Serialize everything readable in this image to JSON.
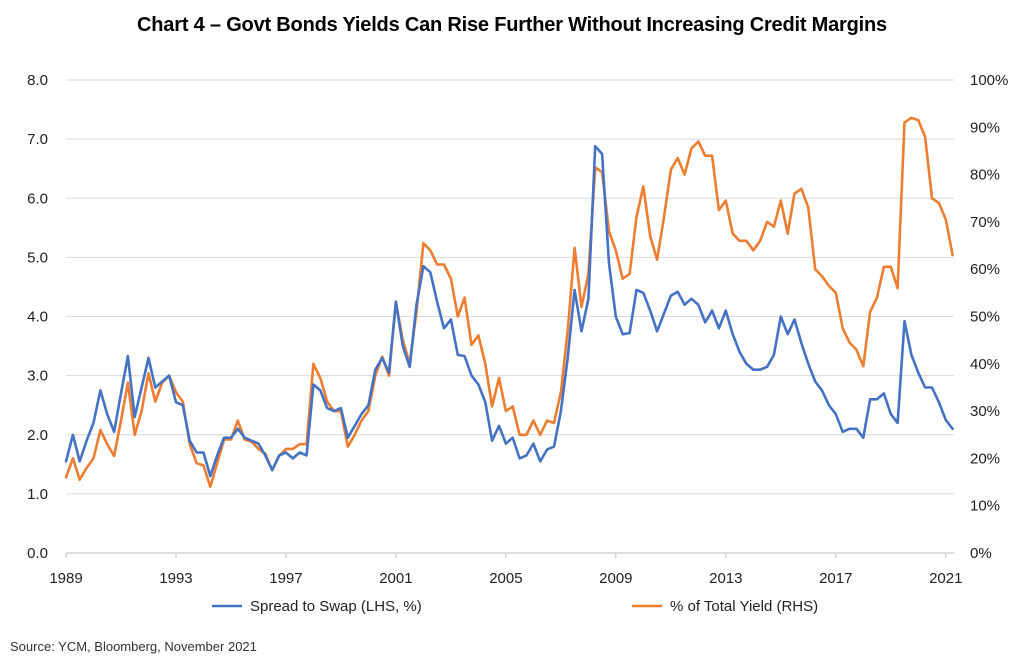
{
  "colors": {
    "spread": "#4472c4",
    "pct": "#ed7d31",
    "grid": "#d9d9d9"
  },
  "source": "Source: YCM, Bloomberg, November 2021",
  "chart_data": {
    "type": "line",
    "title": "Chart 4 – Govt Bonds Yields Can Rise Further Without Increasing Credit Margins",
    "xlabel": "",
    "ylabel": "",
    "x_ticks": [
      "1989",
      "1993",
      "1997",
      "2001",
      "2005",
      "2009",
      "2013",
      "2017",
      "2021"
    ],
    "xlim": [
      1989,
      2021.3
    ],
    "ylim_left": [
      0,
      8
    ],
    "y_ticks_left": [
      "0.0",
      "1.0",
      "2.0",
      "3.0",
      "4.0",
      "5.0",
      "6.0",
      "7.0",
      "8.0"
    ],
    "ylim_right": [
      0,
      100
    ],
    "y_ticks_right": [
      "0%",
      "10%",
      "20%",
      "30%",
      "40%",
      "50%",
      "60%",
      "70%",
      "80%",
      "90%",
      "100%"
    ],
    "grid": "horizontal",
    "legend_position": "bottom",
    "series": [
      {
        "name": "Spread to Swap (LHS, %)",
        "axis": "left",
        "x": [
          1989.0,
          1989.25,
          1989.5,
          1989.75,
          1990.0,
          1990.25,
          1990.5,
          1990.75,
          1991.0,
          1991.25,
          1991.5,
          1991.75,
          1992.0,
          1992.25,
          1992.5,
          1992.75,
          1993.0,
          1993.25,
          1993.5,
          1993.75,
          1994.0,
          1994.25,
          1994.5,
          1994.75,
          1995.0,
          1995.25,
          1995.5,
          1995.75,
          1996.0,
          1996.25,
          1996.5,
          1996.75,
          1997.0,
          1997.25,
          1997.5,
          1997.75,
          1998.0,
          1998.25,
          1998.5,
          1998.75,
          1999.0,
          1999.25,
          1999.5,
          1999.75,
          2000.0,
          2000.25,
          2000.5,
          2000.75,
          2001.0,
          2001.25,
          2001.5,
          2001.75,
          2002.0,
          2002.25,
          2002.5,
          2002.75,
          2003.0,
          2003.25,
          2003.5,
          2003.75,
          2004.0,
          2004.25,
          2004.5,
          2004.75,
          2005.0,
          2005.25,
          2005.5,
          2005.75,
          2006.0,
          2006.25,
          2006.5,
          2006.75,
          2007.0,
          2007.25,
          2007.5,
          2007.75,
          2008.0,
          2008.25,
          2008.5,
          2008.75,
          2009.0,
          2009.25,
          2009.5,
          2009.75,
          2010.0,
          2010.25,
          2010.5,
          2010.75,
          2011.0,
          2011.25,
          2011.5,
          2011.75,
          2012.0,
          2012.25,
          2012.5,
          2012.75,
          2013.0,
          2013.25,
          2013.5,
          2013.75,
          2014.0,
          2014.25,
          2014.5,
          2014.75,
          2015.0,
          2015.25,
          2015.5,
          2015.75,
          2016.0,
          2016.25,
          2016.5,
          2016.75,
          2017.0,
          2017.25,
          2017.5,
          2017.75,
          2018.0,
          2018.25,
          2018.5,
          2018.75,
          2019.0,
          2019.25,
          2019.5,
          2019.75,
          2020.0,
          2020.25,
          2020.5,
          2020.75,
          2021.0,
          2021.25
        ],
        "values": [
          1.55,
          2.0,
          1.55,
          1.9,
          2.2,
          2.75,
          2.35,
          2.05,
          2.7,
          3.33,
          2.3,
          2.8,
          3.3,
          2.8,
          2.9,
          3.0,
          2.55,
          2.5,
          1.9,
          1.7,
          1.7,
          1.3,
          1.65,
          1.95,
          1.95,
          2.1,
          1.95,
          1.9,
          1.85,
          1.65,
          1.4,
          1.65,
          1.7,
          1.6,
          1.7,
          1.65,
          2.85,
          2.75,
          2.45,
          2.4,
          2.45,
          1.95,
          2.15,
          2.35,
          2.5,
          3.1,
          3.3,
          3.05,
          4.25,
          3.5,
          3.15,
          4.2,
          4.85,
          4.75,
          4.25,
          3.8,
          3.95,
          3.35,
          3.33,
          3.0,
          2.85,
          2.55,
          1.9,
          2.15,
          1.85,
          1.95,
          1.6,
          1.65,
          1.85,
          1.55,
          1.75,
          1.8,
          2.4,
          3.3,
          4.45,
          3.75,
          4.3,
          6.88,
          6.75,
          4.9,
          4.0,
          3.7,
          3.72,
          4.45,
          4.4,
          4.1,
          3.75,
          4.05,
          4.35,
          4.42,
          4.2,
          4.3,
          4.2,
          3.9,
          4.1,
          3.8,
          4.1,
          3.7,
          3.4,
          3.2,
          3.1,
          3.1,
          3.15,
          3.35,
          4.0,
          3.7,
          3.95,
          3.55,
          3.2,
          2.9,
          2.75,
          2.5,
          2.35,
          2.05,
          2.1,
          2.1,
          1.95,
          2.6,
          2.6,
          2.7,
          2.35,
          2.2,
          3.92,
          3.35,
          3.05,
          2.8,
          2.8,
          2.55,
          2.25,
          2.1
        ]
      },
      {
        "name": "% of Total Yield (RHS)",
        "axis": "right",
        "x": [
          1989.0,
          1989.25,
          1989.5,
          1989.75,
          1990.0,
          1990.25,
          1990.5,
          1990.75,
          1991.0,
          1991.25,
          1991.5,
          1991.75,
          1992.0,
          1992.25,
          1992.5,
          1992.75,
          1993.0,
          1993.25,
          1993.5,
          1993.75,
          1994.0,
          1994.25,
          1994.5,
          1994.75,
          1995.0,
          1995.25,
          1995.5,
          1995.75,
          1996.0,
          1996.25,
          1996.5,
          1996.75,
          1997.0,
          1997.25,
          1997.5,
          1997.75,
          1998.0,
          1998.25,
          1998.5,
          1998.75,
          1999.0,
          1999.25,
          1999.5,
          1999.75,
          2000.0,
          2000.25,
          2000.5,
          2000.75,
          2001.0,
          2001.25,
          2001.5,
          2001.75,
          2002.0,
          2002.25,
          2002.5,
          2002.75,
          2003.0,
          2003.25,
          2003.5,
          2003.75,
          2004.0,
          2004.25,
          2004.5,
          2004.75,
          2005.0,
          2005.25,
          2005.5,
          2005.75,
          2006.0,
          2006.25,
          2006.5,
          2006.75,
          2007.0,
          2007.25,
          2007.5,
          2007.75,
          2008.0,
          2008.25,
          2008.5,
          2008.75,
          2009.0,
          2009.25,
          2009.5,
          2009.75,
          2010.0,
          2010.25,
          2010.5,
          2010.75,
          2011.0,
          2011.25,
          2011.5,
          2011.75,
          2012.0,
          2012.25,
          2012.5,
          2012.75,
          2013.0,
          2013.25,
          2013.5,
          2013.75,
          2014.0,
          2014.25,
          2014.5,
          2014.75,
          2015.0,
          2015.25,
          2015.5,
          2015.75,
          2016.0,
          2016.25,
          2016.5,
          2016.75,
          2017.0,
          2017.25,
          2017.5,
          2017.75,
          2018.0,
          2018.25,
          2018.5,
          2018.75,
          2019.0,
          2019.25,
          2019.5,
          2019.75,
          2020.0,
          2020.25,
          2020.5,
          2020.75,
          2021.0,
          2021.25
        ],
        "values": [
          16,
          20,
          15.5,
          18,
          20,
          26,
          23,
          20.5,
          28,
          36,
          25,
          30,
          38,
          32,
          36,
          37.5,
          34,
          32,
          23,
          19,
          18.5,
          14,
          19,
          24,
          24,
          28,
          24,
          23.5,
          22,
          21,
          17.5,
          20.5,
          22,
          22,
          23,
          23,
          40,
          37,
          32,
          30,
          30,
          22.5,
          25,
          28,
          30,
          37.5,
          41.5,
          37.5,
          53,
          45,
          40,
          51,
          65.5,
          64,
          61,
          61,
          58,
          50,
          54,
          44,
          46,
          40,
          31,
          37,
          30,
          31,
          25,
          25,
          28,
          25,
          28,
          27.5,
          34,
          47,
          64.5,
          52,
          59,
          81.5,
          80.5,
          68,
          64,
          58,
          59,
          71,
          77.5,
          67,
          62,
          71,
          81,
          83.5,
          80,
          85.5,
          87,
          84,
          84,
          72.5,
          74.5,
          67.5,
          66,
          66,
          64,
          66,
          70,
          69,
          74.5,
          67.5,
          76,
          77,
          73,
          60,
          58.5,
          56.5,
          55,
          47.5,
          44.5,
          43,
          39.5,
          51,
          54,
          60.5,
          60.5,
          56,
          91,
          92,
          91.5,
          88,
          75,
          74,
          70.5,
          63
        ]
      }
    ]
  }
}
